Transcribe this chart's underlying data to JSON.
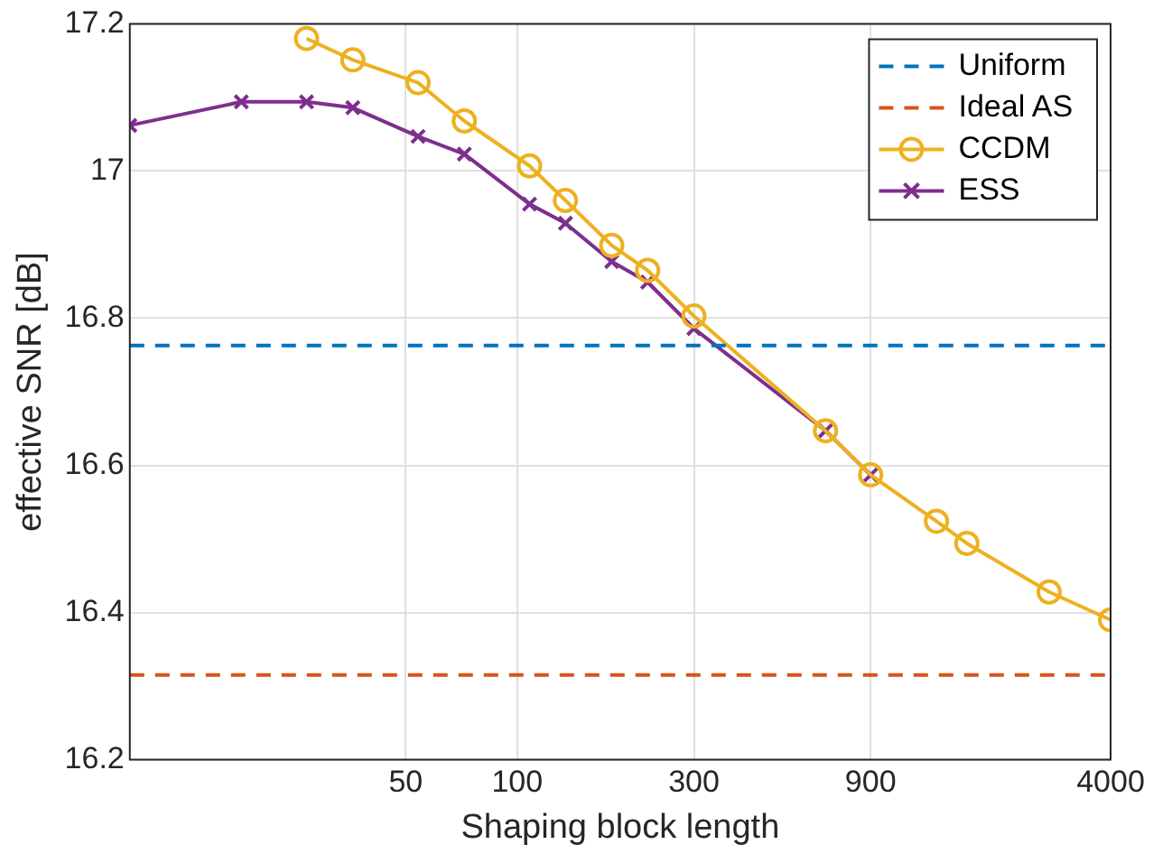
{
  "chart_data": {
    "type": "line",
    "xlabel": "Shaping block length",
    "ylabel": "effective SNR [dB]",
    "log": "x",
    "xlim": [
      9,
      4000
    ],
    "xticks": [
      50,
      100,
      300,
      900,
      4000
    ],
    "ylim": [
      16.2,
      17.2
    ],
    "yticks": [
      16.2,
      16.4,
      16.6,
      16.8,
      17,
      17.2
    ],
    "grid": true,
    "legend": "top right",
    "line_style": "solid",
    "ref_lines": [
      {
        "axis": "y",
        "value": 16.763,
        "label": "Uniform",
        "color": "#0072bd",
        "line_style": "dashed"
      },
      {
        "axis": "y",
        "value": 16.315,
        "label": "Ideal AS",
        "color": "#d95319",
        "line_style": "dashed"
      }
    ],
    "series": [
      {
        "name": "CCDM",
        "color": "#edb120",
        "marker": "circle",
        "x": [
          27,
          36,
          54,
          72,
          108,
          135,
          180,
          225,
          300,
          680,
          900,
          1355,
          1637,
          2730,
          4000
        ],
        "values": [
          17.18,
          17.151,
          17.12,
          17.068,
          17.007,
          16.96,
          16.899,
          16.865,
          16.803,
          16.647,
          16.587,
          16.524,
          16.494,
          16.428,
          16.39
        ]
      },
      {
        "name": "ESS",
        "color": "#7e2f8e",
        "marker": "cross",
        "x": [
          9,
          18,
          27,
          36,
          54,
          72,
          108,
          135,
          180,
          225,
          300,
          680,
          900
        ],
        "values": [
          17.062,
          17.094,
          17.094,
          17.086,
          17.047,
          17.023,
          16.955,
          16.929,
          16.877,
          16.849,
          16.786,
          16.647,
          16.587
        ]
      }
    ]
  }
}
